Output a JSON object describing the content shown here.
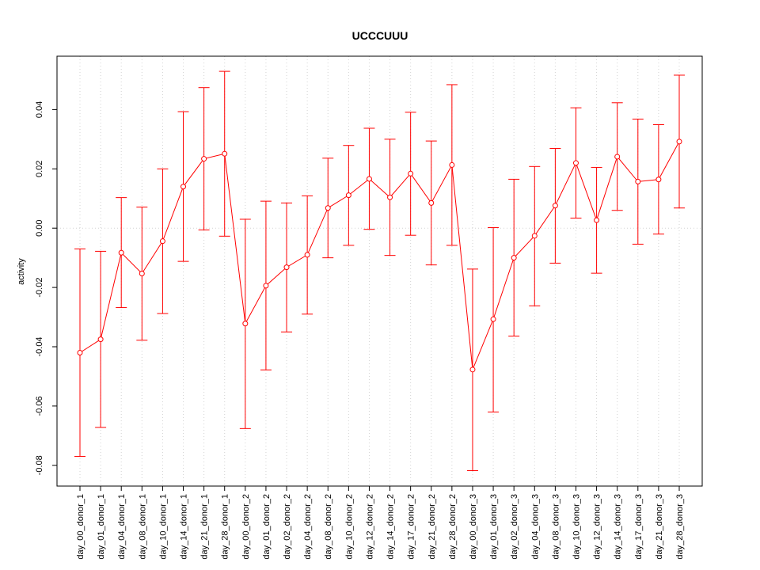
{
  "chart_data": {
    "type": "line",
    "title": "UCCCUUU",
    "xlabel": "",
    "ylabel": "activity",
    "ylim": [
      -0.087,
      0.058
    ],
    "yticks": [
      -0.08,
      -0.06,
      -0.04,
      -0.02,
      0.0,
      0.02,
      0.04
    ],
    "ytick_labels": [
      "-0.08",
      "-0.06",
      "-0.04",
      "-0.02",
      "0.00",
      "0.02",
      "0.04"
    ],
    "grid": true,
    "reference_line": 0.0,
    "color": "#ff0000",
    "categories": [
      "day_00_donor_1",
      "day_01_donor_1",
      "day_04_donor_1",
      "day_08_donor_1",
      "day_10_donor_1",
      "day_14_donor_1",
      "day_21_donor_1",
      "day_28_donor_1",
      "day_00_donor_2",
      "day_01_donor_2",
      "day_02_donor_2",
      "day_04_donor_2",
      "day_08_donor_2",
      "day_10_donor_2",
      "day_12_donor_2",
      "day_14_donor_2",
      "day_17_donor_2",
      "day_21_donor_2",
      "day_28_donor_2",
      "day_00_donor_3",
      "day_01_donor_3",
      "day_02_donor_3",
      "day_04_donor_3",
      "day_08_donor_3",
      "day_10_donor_3",
      "day_12_donor_3",
      "day_14_donor_3",
      "day_17_donor_3",
      "day_21_donor_3",
      "day_28_donor_3"
    ],
    "series": [
      {
        "values": [
          -0.042,
          -0.0375,
          -0.0083,
          -0.0153,
          -0.0044,
          0.014,
          0.0234,
          0.0251,
          -0.0322,
          -0.0194,
          -0.0132,
          -0.009,
          0.0068,
          0.0111,
          0.0166,
          0.0104,
          0.0184,
          0.0085,
          0.0213,
          -0.0477,
          -0.0307,
          -0.01,
          -0.0026,
          0.0076,
          0.022,
          0.0027,
          0.0241,
          0.0157,
          0.0164,
          0.0292
        ],
        "lower": [
          -0.077,
          -0.0672,
          -0.0268,
          -0.0378,
          -0.0288,
          -0.0112,
          -0.0006,
          -0.0027,
          -0.0676,
          -0.0478,
          -0.035,
          -0.029,
          -0.01,
          -0.0058,
          -0.0004,
          -0.0092,
          -0.0024,
          -0.0124,
          -0.0058,
          -0.0818,
          -0.062,
          -0.0364,
          -0.0262,
          -0.0118,
          0.0034,
          -0.0152,
          0.006,
          -0.0054,
          -0.002,
          0.0068
        ],
        "upper": [
          -0.007,
          -0.0078,
          0.0103,
          0.0071,
          0.02,
          0.0393,
          0.0474,
          0.0529,
          0.003,
          0.0091,
          0.0085,
          0.0109,
          0.0236,
          0.0279,
          0.0337,
          0.03,
          0.0391,
          0.0294,
          0.0484,
          -0.0138,
          0.0002,
          0.0165,
          0.0208,
          0.0269,
          0.0406,
          0.0205,
          0.0423,
          0.0368,
          0.0349,
          0.0516
        ]
      }
    ]
  }
}
